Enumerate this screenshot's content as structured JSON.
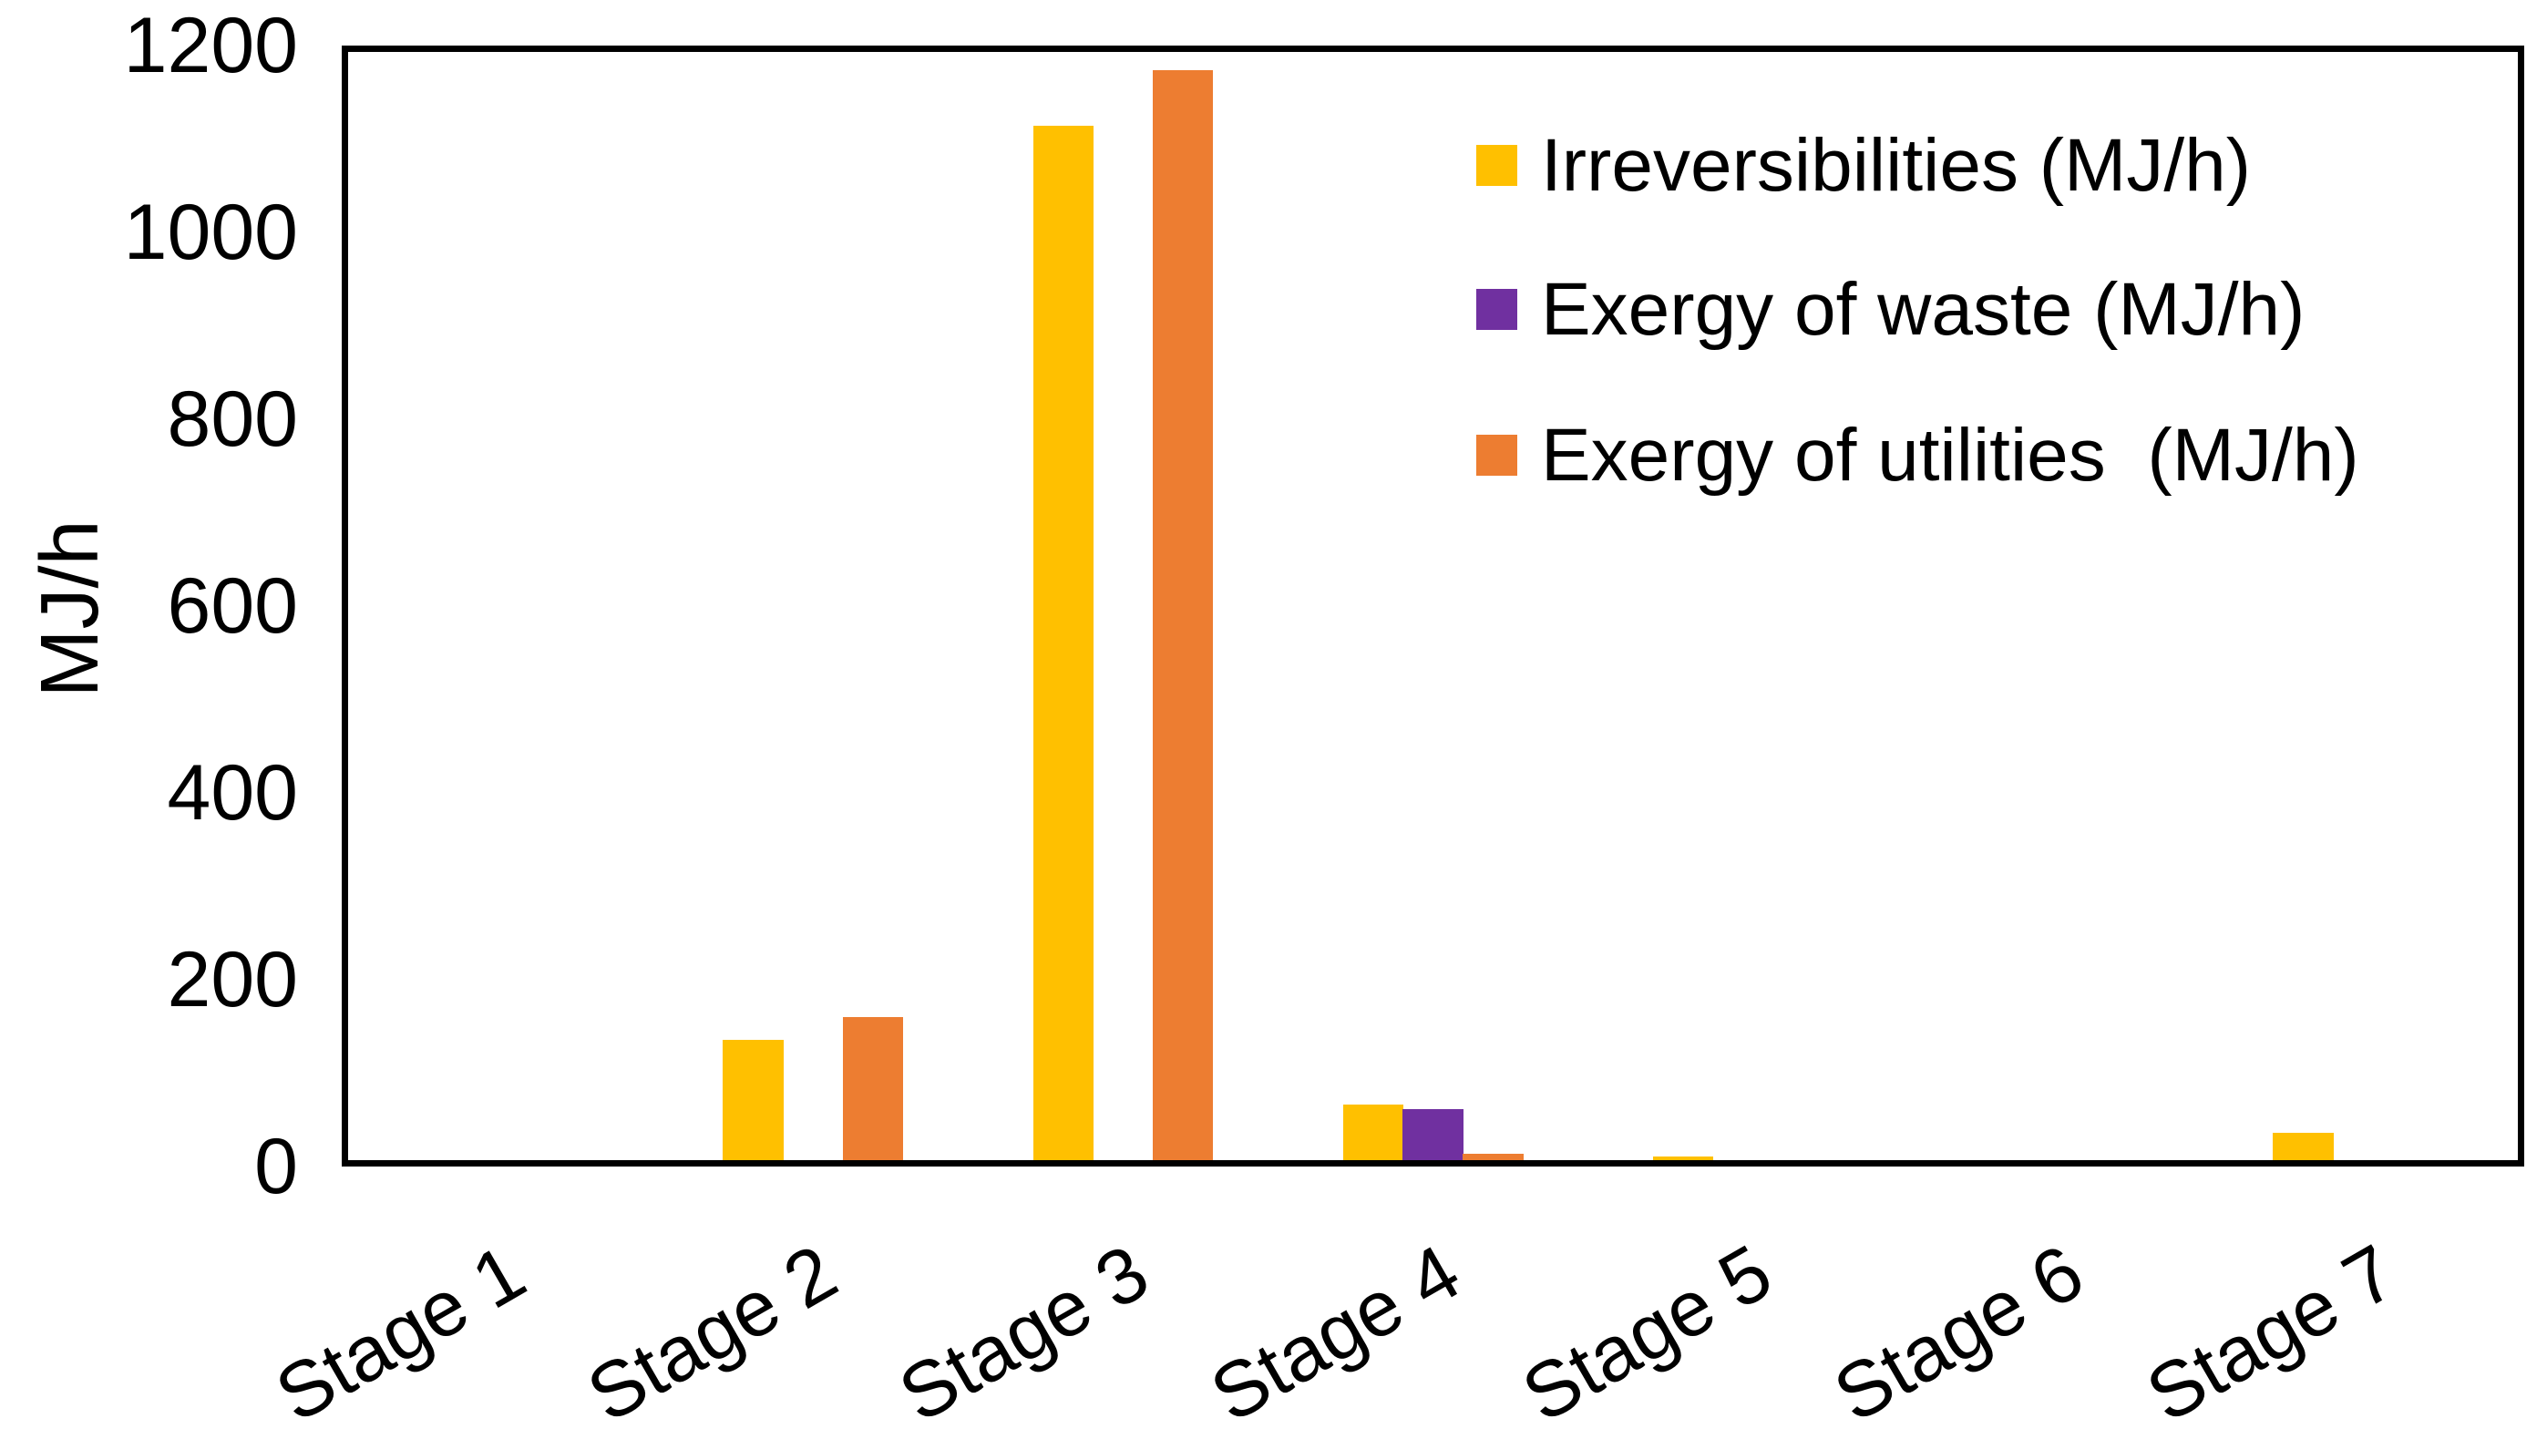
{
  "chart_data": {
    "type": "bar",
    "title": "",
    "xlabel": "",
    "ylabel": "MJ/h",
    "ylim": [
      0,
      1200
    ],
    "yticks": [
      0,
      200,
      400,
      600,
      800,
      1000,
      1200
    ],
    "grid": false,
    "legend_position": "inside-top-right",
    "x_label_rotation_deg": -30,
    "categories": [
      "Stage 1",
      "Stage 2",
      "Stage 3",
      "Stage 4",
      "Stage 5",
      "Stage 6",
      "Stage 7"
    ],
    "series": [
      {
        "name": "Irreversibilities (MJ/h)",
        "color": "#FFC000",
        "values": [
          0,
          130,
          1120,
          60,
          4,
          0,
          30
        ]
      },
      {
        "name": "Exergy of waste (MJ/h)",
        "color": "#7030A0",
        "values": [
          0,
          0,
          0,
          55,
          0,
          0,
          0
        ]
      },
      {
        "name": "Exergy of utilities  (MJ/h)",
        "color": "#ED7D31",
        "values": [
          0,
          155,
          1180,
          7,
          0,
          0,
          0
        ]
      }
    ]
  },
  "colors": {
    "axis": "#000000",
    "background": "#FFFFFF",
    "text": "#000000"
  }
}
